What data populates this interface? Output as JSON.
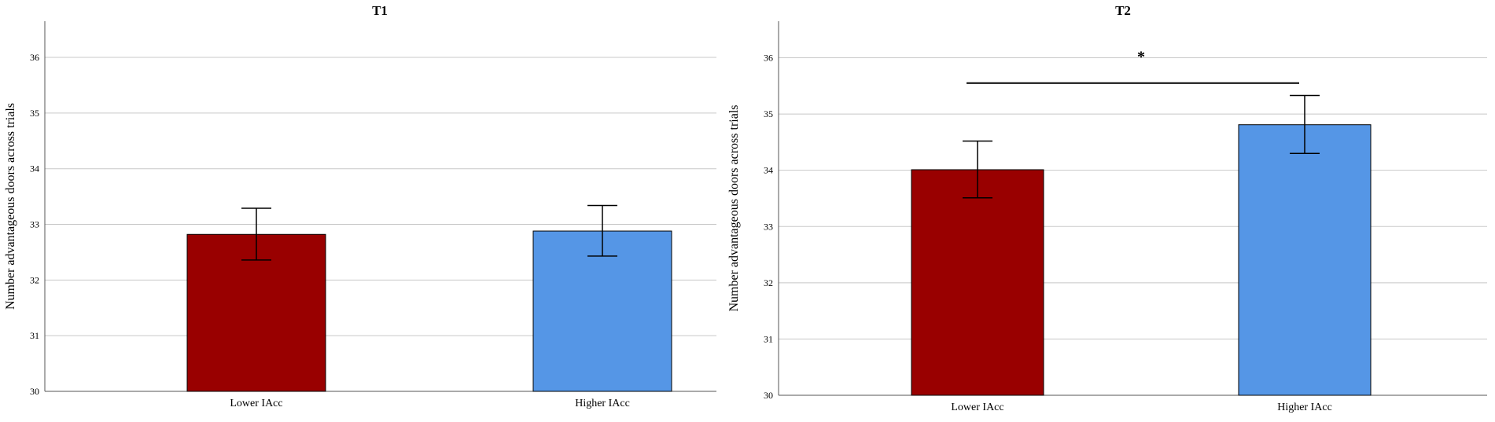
{
  "chart_data": [
    {
      "type": "bar",
      "title": "T1",
      "xlabel": "",
      "ylabel": "Number advantageous doors across trials",
      "categories": [
        "Lower IAcc",
        "Higher IAcc"
      ],
      "values": [
        32.82,
        32.88
      ],
      "error_low": [
        32.36,
        32.43
      ],
      "error_high": [
        33.29,
        33.34
      ],
      "colors": [
        "#990000",
        "#5596e6"
      ],
      "ylim": [
        30,
        36.65
      ],
      "yticks": [
        "30",
        "31",
        "32",
        "33",
        "34",
        "35",
        "36"
      ],
      "grid": true,
      "significance": null
    },
    {
      "type": "bar",
      "title": "T2",
      "xlabel": "",
      "ylabel": "Number advantageous doors across trials",
      "categories": [
        "Lower IAcc",
        "Higher IAcc"
      ],
      "values": [
        34.01,
        34.81
      ],
      "error_low": [
        33.51,
        34.3
      ],
      "error_high": [
        34.52,
        35.33
      ],
      "colors": [
        "#990000",
        "#5596e6"
      ],
      "ylim": [
        30,
        36.65
      ],
      "yticks": [
        "30",
        "31",
        "32",
        "33",
        "34",
        "35",
        "36"
      ],
      "grid": true,
      "significance": {
        "label": "*",
        "between": [
          0,
          1
        ],
        "level": 35.55
      }
    }
  ]
}
